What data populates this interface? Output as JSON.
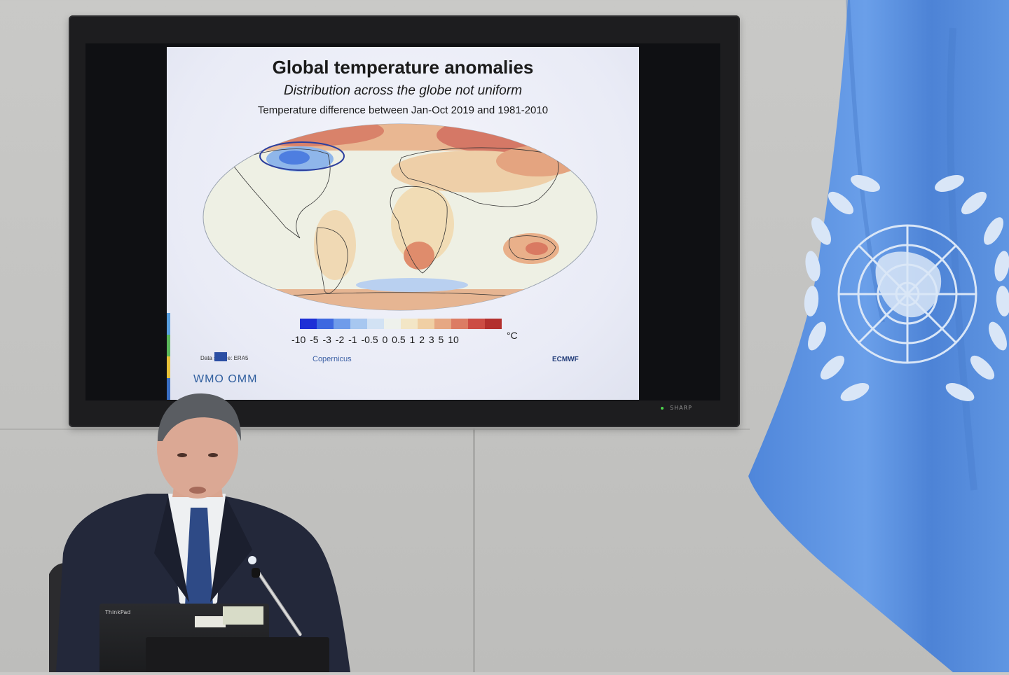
{
  "slide": {
    "title": "Global temperature anomalies",
    "subtitle": "Distribution across the globe not uniform",
    "caption": "Temperature difference between Jan-Oct 2019 and 1981-2010",
    "legend_labels": "-10 -5 -3 -2 -1 -0.5 0 0.5 1 2 3 5 10",
    "legend_unit": "°C",
    "legend_colors": [
      "#1d2fd6",
      "#3d68e0",
      "#6f9cea",
      "#a7c7f0",
      "#d2e2f4",
      "#eef1ec",
      "#f3e6c6",
      "#f0cfa4",
      "#e6a783",
      "#dc7c64",
      "#cc4c44",
      "#b3302e"
    ],
    "data_source": "Data source: ERA5",
    "logo_copernicus": "Copernicus",
    "logo_ecmwf": "ECMWF",
    "logo_wmo": "WMO OMM"
  },
  "tv": {
    "brand": "SHARP"
  },
  "laptop": {
    "brand": "ThinkPad"
  },
  "colors": {
    "un_blue": "#5b92e5",
    "wall": "#c6c6c4",
    "suit": "#22273a"
  }
}
